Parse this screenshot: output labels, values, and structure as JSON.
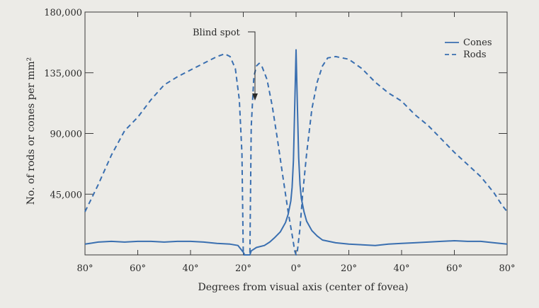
{
  "chart_data": {
    "type": "line",
    "title": "",
    "xlabel": "Degrees from visual axis (center of fovea)",
    "ylabel": "No. of rods or cones per mm²",
    "xlim": [
      -80,
      80
    ],
    "ylim": [
      0,
      180000
    ],
    "x_ticks": [
      -80,
      -60,
      -40,
      -20,
      0,
      20,
      40,
      60,
      80
    ],
    "x_tick_labels": [
      "80°",
      "60°",
      "40°",
      "20°",
      "0°",
      "20°",
      "40°",
      "60°",
      "80°"
    ],
    "y_ticks": [
      45000,
      90000,
      135000,
      180000
    ],
    "y_tick_labels": [
      "45,000",
      "90,000",
      "135,000",
      "180,000"
    ],
    "grid": false,
    "legend": {
      "placement": "top-right"
    },
    "annotations": [
      {
        "text": "Blind spot",
        "x": -17,
        "y": 122000
      }
    ],
    "series": [
      {
        "name": "Cones",
        "style": "solid",
        "color": "#3a6fb0",
        "points": [
          [
            -80,
            8000
          ],
          [
            -75,
            9500
          ],
          [
            -70,
            10000
          ],
          [
            -65,
            9500
          ],
          [
            -60,
            10000
          ],
          [
            -55,
            10000
          ],
          [
            -50,
            9500
          ],
          [
            -45,
            10000
          ],
          [
            -40,
            10000
          ],
          [
            -35,
            9500
          ],
          [
            -30,
            8500
          ],
          [
            -25,
            8000
          ],
          [
            -22,
            7000
          ],
          [
            -20,
            2000
          ],
          [
            -19.5,
            0
          ],
          [
            -17.5,
            0
          ],
          [
            -17,
            3000
          ],
          [
            -15,
            5500
          ],
          [
            -12,
            7000
          ],
          [
            -10,
            9500
          ],
          [
            -8,
            13000
          ],
          [
            -6,
            17000
          ],
          [
            -4,
            24000
          ],
          [
            -3,
            30000
          ],
          [
            -2,
            40000
          ],
          [
            -1.5,
            50000
          ],
          [
            -1,
            70000
          ],
          [
            -0.5,
            110000
          ],
          [
            0,
            152000
          ],
          [
            0.5,
            110000
          ],
          [
            1,
            72000
          ],
          [
            1.5,
            52000
          ],
          [
            2,
            42000
          ],
          [
            3,
            32000
          ],
          [
            4,
            25000
          ],
          [
            6,
            18000
          ],
          [
            8,
            14000
          ],
          [
            10,
            11000
          ],
          [
            15,
            9000
          ],
          [
            20,
            8000
          ],
          [
            25,
            7500
          ],
          [
            30,
            7000
          ],
          [
            35,
            8000
          ],
          [
            40,
            8500
          ],
          [
            45,
            9000
          ],
          [
            50,
            9500
          ],
          [
            55,
            10000
          ],
          [
            60,
            10500
          ],
          [
            65,
            10000
          ],
          [
            70,
            10000
          ],
          [
            75,
            9000
          ],
          [
            80,
            8000
          ]
        ]
      },
      {
        "name": "Rods",
        "style": "dashed",
        "color": "#3a6fb0",
        "points": [
          [
            -80,
            32000
          ],
          [
            -78,
            40000
          ],
          [
            -75,
            52000
          ],
          [
            -70,
            74000
          ],
          [
            -65,
            92000
          ],
          [
            -60,
            102000
          ],
          [
            -55,
            115000
          ],
          [
            -50,
            126000
          ],
          [
            -45,
            132000
          ],
          [
            -40,
            137000
          ],
          [
            -35,
            142000
          ],
          [
            -30,
            147000
          ],
          [
            -27,
            149000
          ],
          [
            -25,
            147000
          ],
          [
            -23,
            138000
          ],
          [
            -21.5,
            115000
          ],
          [
            -20.5,
            75000
          ],
          [
            -20,
            0
          ],
          [
            -17.5,
            0
          ],
          [
            -17,
            95000
          ],
          [
            -16,
            132000
          ],
          [
            -15,
            140000
          ],
          [
            -14,
            142000
          ],
          [
            -13,
            140000
          ],
          [
            -11,
            130000
          ],
          [
            -9,
            110000
          ],
          [
            -7,
            85000
          ],
          [
            -5,
            58000
          ],
          [
            -3,
            32000
          ],
          [
            -1.5,
            15000
          ],
          [
            -0.5,
            3000
          ],
          [
            0,
            0
          ],
          [
            0.5,
            3000
          ],
          [
            1.5,
            20000
          ],
          [
            2.5,
            45000
          ],
          [
            4,
            75000
          ],
          [
            6,
            108000
          ],
          [
            8,
            128000
          ],
          [
            10,
            140000
          ],
          [
            12,
            146000
          ],
          [
            15,
            147000
          ],
          [
            20,
            145000
          ],
          [
            25,
            138000
          ],
          [
            30,
            128000
          ],
          [
            35,
            120000
          ],
          [
            40,
            114000
          ],
          [
            45,
            104000
          ],
          [
            50,
            96000
          ],
          [
            55,
            86000
          ],
          [
            60,
            76000
          ],
          [
            65,
            67000
          ],
          [
            70,
            58000
          ],
          [
            75,
            46000
          ],
          [
            78,
            37000
          ],
          [
            80,
            32000
          ]
        ]
      }
    ]
  }
}
